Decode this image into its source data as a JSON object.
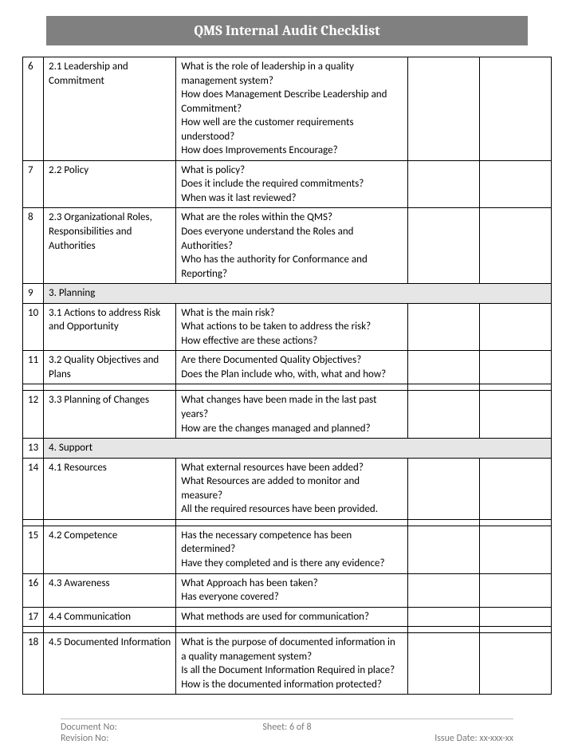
{
  "title": "QMS Internal Audit Checklist",
  "columns": {
    "num_w": 26,
    "item_w": 166,
    "q_w": 290,
    "e1_w": 90,
    "e2_w": 90
  },
  "colors": {
    "titlebar_bg": "#808080",
    "titlebar_text": "#ffffff",
    "section_bg": "#e6e6e6",
    "border": "#000000",
    "footer_text": "#7a7a7a",
    "footer_rule": "#bfbfbf",
    "page_bg": "#ffffff"
  },
  "rows": [
    {
      "n": "6",
      "item": "2.1 Leadership and Commitment",
      "q": [
        "What is the role of leadership in a quality management system?",
        "How does Management Describe Leadership and Commitment?",
        "How well are the customer requirements understood?",
        "How does Improvements Encourage?"
      ]
    },
    {
      "n": "7",
      "item": "2.2 Policy",
      "q": [
        "What is policy?",
        "Does it include the required commitments?",
        "When was it last reviewed?"
      ]
    },
    {
      "n": "8",
      "item": "2.3 Organizational Roles, Responsibilities and Authorities",
      "q": [
        "What are the roles within the QMS?",
        "Does everyone understand the Roles and Authorities?",
        "Who has the authority for Conformance and Reporting?"
      ]
    },
    {
      "section": true,
      "n": "9",
      "item": "3. Planning"
    },
    {
      "n": "10",
      "item": "3.1 Actions to address Risk and Opportunity",
      "q": [
        "What is the main risk?",
        "What actions to be taken to address the risk?",
        "How effective are these actions?"
      ]
    },
    {
      "n": "11",
      "item": "3.2 Quality Objectives and Plans",
      "q": [
        "Are there Documented Quality Objectives?",
        "Does the Plan include who, with, what and how?"
      ],
      "spacer_after": true
    },
    {
      "n": "12",
      "item": "3.3 Planning of Changes",
      "q": [
        "What changes have been made in the last past years?",
        "How are the changes managed and planned?"
      ]
    },
    {
      "section": true,
      "n": "13",
      "item": "4. Support"
    },
    {
      "n": "14",
      "item": "4.1 Resources",
      "q": [
        "What external resources have been added?",
        "What Resources are added to monitor and measure?",
        "All the required resources have been provided."
      ],
      "spacer_after": true
    },
    {
      "n": "15",
      "item": "4.2 Competence",
      "q": [
        "Has the necessary competence has been determined?",
        "Have they completed and is there any evidence?"
      ]
    },
    {
      "n": "16",
      "item": "4.3 Awareness",
      "q": [
        "What Approach has been taken?",
        "Has everyone covered?"
      ]
    },
    {
      "n": "17",
      "item": "4.4 Communication",
      "q": [
        "What methods are used for communication?"
      ],
      "spacer_after": true
    },
    {
      "n": "18",
      "item": "4.5 Documented Information",
      "q": [
        "What is the purpose of documented information in a quality management system?",
        "Is all the Document Information Required in place?",
        "How is the documented information protected?"
      ]
    }
  ],
  "footer": {
    "doc_no_label": "Document No:",
    "sheet_label": "Sheet: 6 of 8",
    "rev_no_label": "Revision No:",
    "issue_label": "Issue Date: xx-xxx-xx"
  }
}
